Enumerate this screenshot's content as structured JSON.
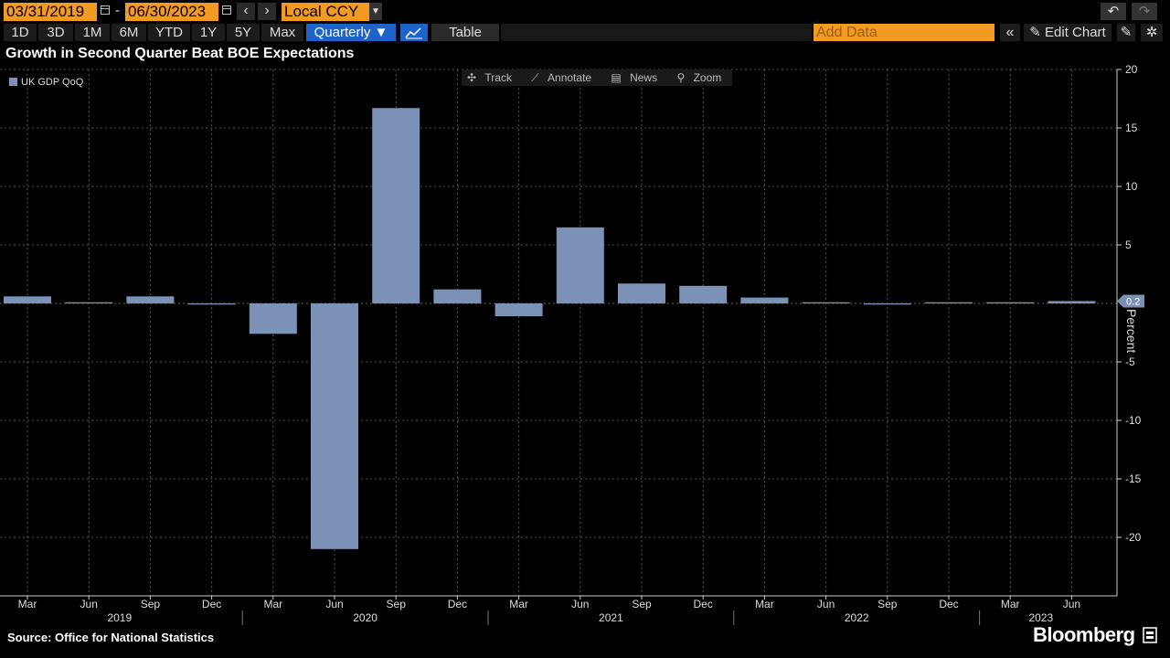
{
  "header": {
    "start_date": "03/31/2019",
    "end_date": "06/30/2023",
    "currency": "Local CCY",
    "date_separator": "-"
  },
  "periods": [
    "1D",
    "3D",
    "1M",
    "6M",
    "YTD",
    "1Y",
    "5Y",
    "Max"
  ],
  "frequency": "Quarterly ▼",
  "table_label": "Table",
  "add_data_placeholder": "Add Data",
  "edit_chart_label": "Edit Chart",
  "chart_tools": [
    "Track",
    "Annotate",
    "News",
    "Zoom"
  ],
  "source": "Source: Office for National Statistics",
  "brand": "Bloomberg",
  "colors": {
    "bar": "#7b92b6",
    "accent": "#f29a22",
    "active": "#1e63c9"
  },
  "chart_data": {
    "type": "bar",
    "title": "Growth in Second Quarter Beat BOE Expectations",
    "ylabel": "Percent",
    "legend": "UK GDP QoQ",
    "legend_position": "top-left",
    "categories": [
      "Mar",
      "Jun",
      "Sep",
      "Dec",
      "Mar",
      "Jun",
      "Sep",
      "Dec",
      "Mar",
      "Jun",
      "Sep",
      "Dec",
      "Mar",
      "Jun",
      "Sep",
      "Dec",
      "Mar",
      "Jun"
    ],
    "years": [
      {
        "label": "2019",
        "start": 0,
        "end": 3
      },
      {
        "label": "2020",
        "start": 4,
        "end": 7
      },
      {
        "label": "2021",
        "start": 8,
        "end": 11
      },
      {
        "label": "2022",
        "start": 12,
        "end": 15
      },
      {
        "label": "2023",
        "start": 16,
        "end": 17
      }
    ],
    "values": [
      0.6,
      0.1,
      0.6,
      -0.1,
      -2.6,
      -21.0,
      16.7,
      1.2,
      -1.1,
      6.5,
      1.7,
      1.5,
      0.5,
      0.1,
      -0.1,
      0.1,
      0.1,
      0.2
    ],
    "last_value_label": "0.2",
    "yticks": [
      20,
      15,
      10,
      5,
      -5,
      -10,
      -15,
      -20
    ],
    "ylim": [
      -25,
      20
    ],
    "grid": true
  }
}
